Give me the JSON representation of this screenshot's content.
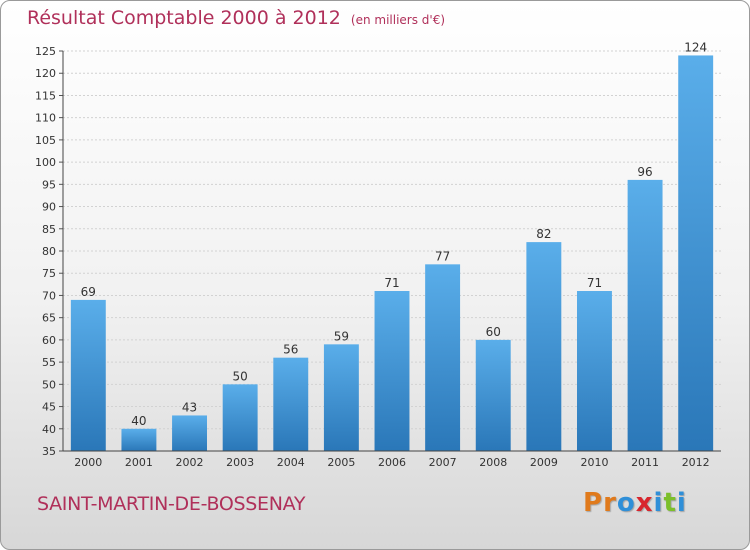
{
  "header": {
    "title": "Résultat Comptable 2000 à 2012",
    "subtitle": "(en milliers d'€)"
  },
  "footer": {
    "commune": "SAINT-MARTIN-DE-BOSSENAY",
    "logo": "Proxiti"
  },
  "colors": {
    "title": "#b0305a",
    "bar_top": "#5aaeea",
    "bar_bottom": "#2a77b8",
    "logo": [
      "#e07a1c",
      "#e07a1c",
      "#2f8fd8",
      "#d8262e",
      "#2f8fd8",
      "#7cbf2a",
      "#2f8fd8"
    ]
  },
  "chart_data": {
    "type": "bar",
    "categories": [
      "2000",
      "2001",
      "2002",
      "2003",
      "2004",
      "2005",
      "2006",
      "2007",
      "2008",
      "2009",
      "2010",
      "2011",
      "2012"
    ],
    "values": [
      69,
      40,
      43,
      50,
      56,
      59,
      71,
      77,
      60,
      82,
      71,
      96,
      124
    ],
    "title": "Résultat Comptable 2000 à 2012",
    "ylim": [
      35,
      125
    ],
    "yticks": [
      35,
      40,
      45,
      50,
      55,
      60,
      65,
      70,
      75,
      80,
      85,
      90,
      95,
      100,
      105,
      110,
      115,
      120,
      125
    ],
    "grid": true,
    "legend": "none"
  }
}
